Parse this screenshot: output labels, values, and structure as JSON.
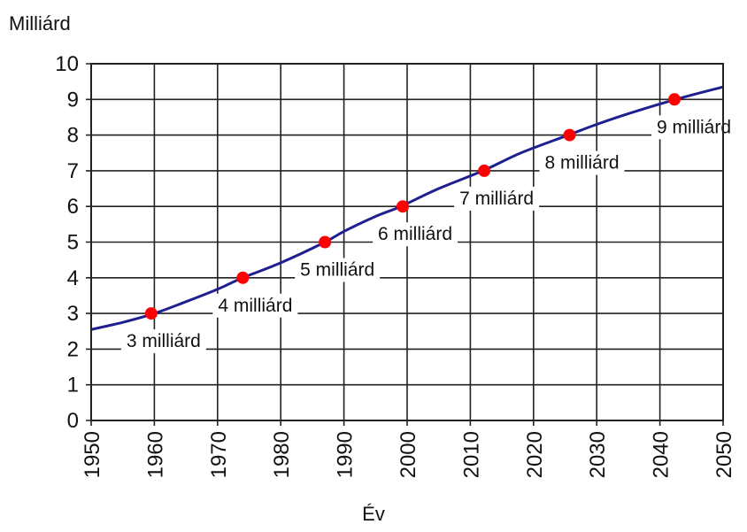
{
  "chart_data": {
    "type": "line",
    "ylabel": "Milliárd",
    "xlabel": "Év",
    "xlim": [
      1950,
      2050
    ],
    "ylim": [
      0,
      10
    ],
    "x_ticks": [
      1950,
      1960,
      1970,
      1980,
      1990,
      2000,
      2010,
      2020,
      2030,
      2040,
      2050
    ],
    "y_ticks": [
      0,
      1,
      2,
      3,
      4,
      5,
      6,
      7,
      8,
      9,
      10
    ],
    "grid": true,
    "series": [
      {
        "color": "#1f1f8f",
        "points": [
          [
            1950,
            2.55
          ],
          [
            1955,
            2.75
          ],
          [
            1960,
            3.0
          ],
          [
            1965,
            3.33
          ],
          [
            1970,
            3.68
          ],
          [
            1974,
            4.0
          ],
          [
            1980,
            4.42
          ],
          [
            1987,
            5.0
          ],
          [
            1990,
            5.3
          ],
          [
            1995,
            5.72
          ],
          [
            1999,
            6.0
          ],
          [
            2005,
            6.5
          ],
          [
            2012,
            7.0
          ],
          [
            2018,
            7.5
          ],
          [
            2025.5,
            8.0
          ],
          [
            2030,
            8.3
          ],
          [
            2035,
            8.6
          ],
          [
            2042.5,
            9.0
          ],
          [
            2050,
            9.35
          ]
        ]
      }
    ],
    "milestones": [
      {
        "x": 1959.5,
        "y": 3,
        "label": "3 milliárd",
        "color": "#ff0000"
      },
      {
        "x": 1974,
        "y": 4,
        "label": "4 milliárd",
        "color": "#ff0000"
      },
      {
        "x": 1987,
        "y": 5,
        "label": "5 milliárd",
        "color": "#ff0000"
      },
      {
        "x": 1999.3,
        "y": 6,
        "label": "6 milliárd",
        "color": "#ff0000"
      },
      {
        "x": 2012.2,
        "y": 7,
        "label": "7 milliárd",
        "color": "#ff0000"
      },
      {
        "x": 2025.7,
        "y": 8,
        "label": "8 milliárd",
        "color": "#ff0000"
      },
      {
        "x": 2042.3,
        "y": 9,
        "label": "9 milliárd",
        "color": "#ff0000"
      }
    ]
  }
}
